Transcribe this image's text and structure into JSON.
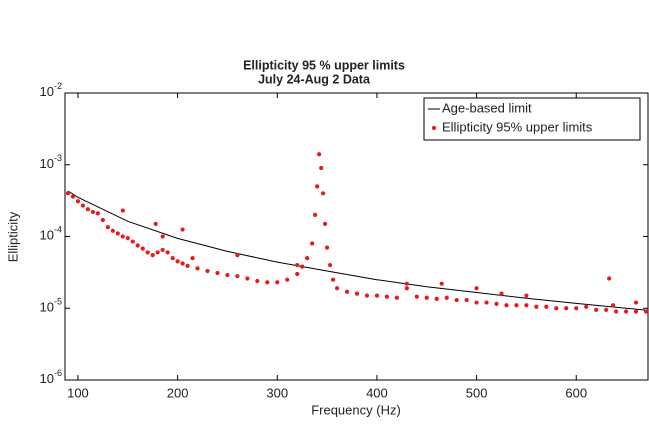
{
  "chart_data": {
    "type": "line",
    "title": "Ellipticity 95 % upper limits",
    "subtitle": "July 24-Aug 2 Data",
    "x_label": "Frequency (Hz)",
    "y_label": "Ellipticity",
    "xlim": [
      87,
      672
    ],
    "ylim": [
      1e-06,
      0.01
    ],
    "ylog": true,
    "xticks": [
      100,
      200,
      300,
      400,
      500,
      600
    ],
    "yticks": [
      {
        "value": 1e-06,
        "label": "10^-6"
      },
      {
        "value": 1e-05,
        "label": "10^-5"
      },
      {
        "value": 0.0001,
        "label": "10^-4"
      },
      {
        "value": 0.001,
        "label": "10^-3"
      },
      {
        "value": 0.01,
        "label": "10^-2"
      }
    ],
    "legend": "upper right",
    "series": [
      {
        "name": "Age-based limit",
        "color": "#000000",
        "style": "line",
        "x": [
          90,
          100,
          150,
          200,
          250,
          300,
          350,
          400,
          450,
          500,
          550,
          600,
          650,
          672
        ],
        "values": [
          0.00043,
          0.000352,
          0.000163,
          9.4e-05,
          6.2e-05,
          4.4e-05,
          3.3e-05,
          2.5e-05,
          2e-05,
          1.66e-05,
          1.38e-05,
          1.17e-05,
          1e-05,
          9.4e-06
        ]
      },
      {
        "name": "Ellipticity 95% upper limits",
        "color": "#e8191c",
        "style": "marker",
        "x": [
          90,
          95,
          100,
          105,
          110,
          115,
          120,
          125,
          130,
          135,
          140,
          145,
          150,
          155,
          160,
          165,
          170,
          175,
          180,
          185,
          190,
          195,
          200,
          205,
          210,
          220,
          230,
          240,
          250,
          260,
          270,
          280,
          290,
          300,
          310,
          320,
          325,
          330,
          335,
          338,
          340,
          342,
          344,
          346,
          348,
          350,
          353,
          356,
          360,
          370,
          380,
          390,
          400,
          410,
          420,
          430,
          440,
          450,
          460,
          470,
          480,
          490,
          500,
          510,
          520,
          530,
          540,
          550,
          560,
          570,
          580,
          590,
          600,
          610,
          620,
          630,
          640,
          650,
          660,
          670,
          145,
          178,
          185,
          205,
          215,
          260,
          320,
          430,
          465,
          500,
          525,
          550,
          633,
          637,
          660
        ],
        "values": [
          0.0004,
          0.00036,
          0.00031,
          0.00027,
          0.00024,
          0.00022,
          0.00021,
          0.00017,
          0.000135,
          0.00012,
          0.00011,
          0.0001,
          9.5e-05,
          8.5e-05,
          7.5e-05,
          6.8e-05,
          6e-05,
          5.5e-05,
          6e-05,
          6.5e-05,
          6e-05,
          5e-05,
          4.5e-05,
          4.2e-05,
          3.9e-05,
          3.6e-05,
          3.3e-05,
          3.1e-05,
          2.9e-05,
          2.8e-05,
          2.6e-05,
          2.4e-05,
          2.3e-05,
          2.3e-05,
          2.5e-05,
          3e-05,
          3.8e-05,
          5e-05,
          8e-05,
          0.0002,
          0.0005,
          0.0014,
          0.0009,
          0.0004,
          0.00015,
          7e-05,
          4e-05,
          2.5e-05,
          1.9e-05,
          1.7e-05,
          1.6e-05,
          1.5e-05,
          1.5e-05,
          1.45e-05,
          1.4e-05,
          1.9e-05,
          1.45e-05,
          1.4e-05,
          1.35e-05,
          1.4e-05,
          1.3e-05,
          1.3e-05,
          1.2e-05,
          1.2e-05,
          1.15e-05,
          1.1e-05,
          1.1e-05,
          1.1e-05,
          1.05e-05,
          1.05e-05,
          1e-05,
          1e-05,
          1e-05,
          1.05e-05,
          9.5e-06,
          9.5e-06,
          9e-06,
          9e-06,
          9e-06,
          9e-06,
          0.00023,
          0.00015,
          0.0001,
          0.000125,
          5e-05,
          5.5e-05,
          4e-05,
          2.2e-05,
          2.2e-05,
          1.9e-05,
          1.6e-05,
          1.5e-05,
          2.6e-05,
          1.1e-05,
          1.2e-05
        ]
      }
    ]
  }
}
